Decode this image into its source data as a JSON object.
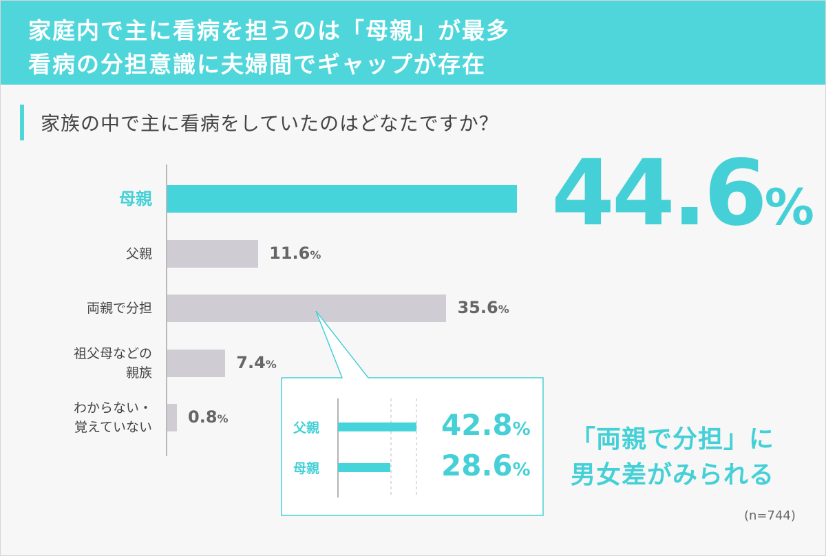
{
  "header": {
    "line1": "家庭内で主に看病を担うのは「母親」が最多",
    "line2": "看病の分担意識に夫婦間でギャップが存在"
  },
  "question": "家族の中で主に看病をしていたのはどなたですか？",
  "highlight_value": "44.6",
  "percent_sign": "%",
  "chart_data": {
    "type": "bar",
    "orientation": "horizontal",
    "categories": [
      "母親",
      "父親",
      "両親で分担",
      "祖父母などの親族",
      "わからない・覚えていない"
    ],
    "category_lines": [
      [
        "母親"
      ],
      [
        "父親"
      ],
      [
        "両親で分担"
      ],
      [
        "祖父母などの",
        "親族"
      ],
      [
        "わからない・",
        "覚えていない"
      ]
    ],
    "values": [
      44.6,
      11.6,
      35.6,
      7.4,
      0.8
    ],
    "value_labels": [
      "44.6",
      "11.6",
      "35.6",
      "7.4",
      "0.8"
    ],
    "unit": "%",
    "highlight_index": 0,
    "xlim": [
      0,
      45
    ],
    "colors": {
      "highlight": "#44d4d9",
      "default": "#cfcdd3"
    },
    "breakdown": {
      "parent_category": "両親で分担",
      "categories": [
        "父親",
        "母親"
      ],
      "values": [
        42.8,
        28.6
      ],
      "value_labels": [
        "42.8",
        "28.6"
      ],
      "unit": "%"
    }
  },
  "note": {
    "line1": "「両親で分担」に",
    "line2": "男女差がみられる"
  },
  "sample_size": "(n=744)"
}
